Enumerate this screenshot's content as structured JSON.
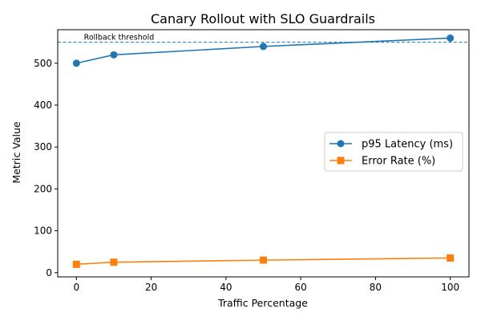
{
  "chart_data": {
    "type": "line",
    "title": "Canary Rollout with SLO Guardrails",
    "xlabel": "Traffic Percentage",
    "ylabel": "Metric Value",
    "xlim": [
      -5,
      105
    ],
    "ylim": [
      -10,
      580
    ],
    "xticks": [
      0,
      20,
      40,
      60,
      80,
      100
    ],
    "yticks": [
      0,
      100,
      200,
      300,
      400,
      500
    ],
    "x": [
      0,
      10,
      50,
      100
    ],
    "series": [
      {
        "name": "p95 Latency (ms)",
        "values": [
          500,
          520,
          540,
          560
        ],
        "color": "#1f77b4",
        "marker": "circle"
      },
      {
        "name": "Error Rate (%)",
        "values": [
          20,
          25,
          30,
          35
        ],
        "color": "#ff7f0e",
        "marker": "square"
      }
    ],
    "threshold": {
      "value": 550,
      "label": "Rollback threshold",
      "color": "#1f77b4",
      "style": "dashed"
    },
    "legend_position": "center-right",
    "grid": false
  }
}
